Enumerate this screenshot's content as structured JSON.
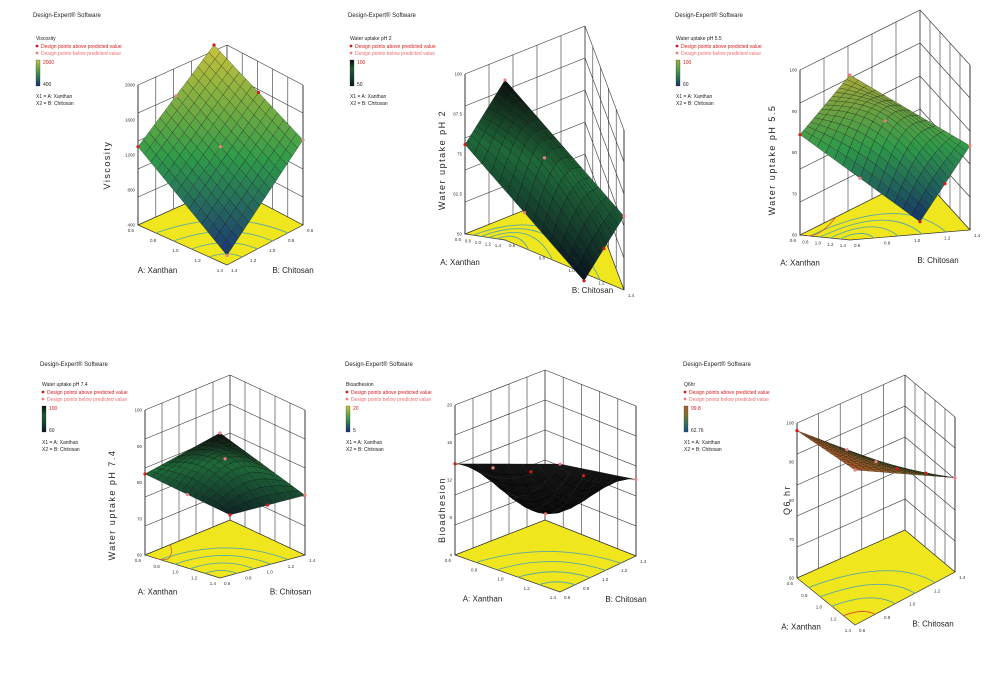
{
  "colors": {
    "floor": "#f0e61e",
    "contour": "#5aa9a0",
    "contour_hot": "#d8442a",
    "surface_low": "#1a2a7a",
    "surface_mid": "#2f9a4a",
    "surface_high": "#c8c23a",
    "surface_hot": "#b55a2a",
    "dark_surface": "#0b0b0b",
    "design_point_above": "#d31b1b",
    "design_point_below": "#ee8080"
  },
  "chart_data": [
    {
      "type": "surface3d",
      "software_label": "Design-Expert® Software",
      "response": "Viscosity",
      "legend": {
        "above": "Design points above predicted value",
        "below": "Design points below predicted value",
        "scale_top": "2000",
        "scale_bottom": "400",
        "x1": "X1 = A: Xanthan",
        "x2": "X2 = B: Chitosan"
      },
      "zlabel": "Viscosity",
      "xlabel": "B: Chitosan",
      "ylabel": "A: Xanthan",
      "z_ticks": [
        "2000",
        "1600",
        "1200",
        "800",
        "400"
      ],
      "x_ticks": [
        "1.4",
        "1.2",
        "1.0",
        "0.8",
        "0.6"
      ],
      "y_ticks": [
        "0.6",
        "0.8",
        "1.0",
        "1.2",
        "1.4"
      ],
      "surface_colormap": "blue-green-yellow",
      "surface_shape": "plane",
      "corners_z": [
        0.05,
        0.55,
        0.6,
        1.0
      ]
    },
    {
      "type": "surface3d",
      "software_label": "Design-Expert® Software",
      "response": "Water uptake pH 2",
      "legend": {
        "above": "Design points above predicted value",
        "below": "Design points below predicted value",
        "scale_top": "100",
        "scale_bottom": "50",
        "x1": "X1 = A: Xanthan",
        "x2": "X2 = B: Chitosan"
      },
      "zlabel": "Water uptake pH 2",
      "xlabel": "B: Chitosan",
      "ylabel": "A: Xanthan",
      "z_ticks": [
        "100",
        "87.5",
        "75",
        "62.5",
        "50"
      ],
      "x_ticks": [
        "0.6",
        "0.8",
        "1.0",
        "1.2",
        "1.4"
      ],
      "y_ticks": [
        "0.6",
        "0.8",
        "1.0",
        "1.2",
        "1.4"
      ],
      "surface_colormap": "dark-green",
      "surface_shape": "saddle",
      "corners_z": [
        1.0,
        0.55,
        0.45,
        0.0
      ]
    },
    {
      "type": "surface3d",
      "software_label": "Design-Expert® Software",
      "response": "Water uptake pH 5.5",
      "legend": {
        "above": "Design points above predicted value",
        "below": "Design points below predicted value",
        "scale_top": "100",
        "scale_bottom": "60",
        "x1": "X1 = A: Xanthan",
        "x2": "X2 = B: Chitosan"
      },
      "zlabel": "Water uptake pH 5.5",
      "xlabel": "B: Chitosan",
      "ylabel": "A: Xanthan",
      "z_ticks": [
        "100",
        "90",
        "80",
        "70",
        "60"
      ],
      "x_ticks": [
        "0.6",
        "0.8",
        "1.0",
        "1.2",
        "1.4"
      ],
      "y_ticks": [
        "0.6",
        "0.8",
        "1.0",
        "1.2",
        "1.4"
      ],
      "surface_colormap": "dark-green-yellow",
      "surface_shape": "saddle",
      "corners_z": [
        1.0,
        0.6,
        0.5,
        0.0
      ]
    },
    {
      "type": "surface3d",
      "software_label": "Design-Expert® Software",
      "response": "Water uptake pH 7.4",
      "legend": {
        "above": "Design points above predicted value",
        "below": "Design points below predicted value",
        "scale_top": "100",
        "scale_bottom": "60",
        "x1": "X1 = A: Xanthan",
        "x2": "X2 = B: Chitosan"
      },
      "zlabel": "Water uptake pH 7.4",
      "xlabel": "B: Chitosan",
      "ylabel": "A: Xanthan",
      "z_ticks": [
        "100",
        "90",
        "80",
        "70",
        "60"
      ],
      "x_ticks": [
        "0.6",
        "0.8",
        "1.0",
        "1.2",
        "1.4"
      ],
      "y_ticks": [
        "0.6",
        "0.8",
        "1.0",
        "1.2",
        "1.4"
      ],
      "surface_colormap": "dark-green",
      "surface_shape": "saddle",
      "corners_z": [
        1.0,
        0.55,
        0.4,
        0.1
      ]
    },
    {
      "type": "surface3d",
      "software_label": "Design-Expert® Software",
      "response": "Bioadhesion",
      "legend": {
        "above": "Design points above predicted value",
        "below": "Design points below predicted value",
        "scale_top": "20",
        "scale_bottom": "5",
        "x1": "X1 = A: Xanthan",
        "x2": "X2 = B: Chitosan"
      },
      "zlabel": "Bioadhesion",
      "xlabel": "B: Chitosan",
      "ylabel": "A: Xanthan",
      "z_ticks": [
        "20",
        "16",
        "12",
        "8",
        "4"
      ],
      "x_ticks": [
        "0.6",
        "0.8",
        "1.0",
        "1.2",
        "1.4"
      ],
      "y_ticks": [
        "0.6",
        "0.8",
        "1.0",
        "1.2",
        "1.4"
      ],
      "surface_colormap": "black",
      "surface_shape": "bowl",
      "corners_z": [
        0.85,
        0.6,
        0.5,
        0.3
      ]
    },
    {
      "type": "surface3d",
      "software_label": "Design-Expert® Software",
      "response": "Q6hr",
      "legend": {
        "above": "Design points above predicted value",
        "below": "Design points below predicted value",
        "scale_top": "99.8",
        "scale_bottom": "62.76",
        "x1": "X1 = A: Xanthan",
        "x2": "X2 = B: Chitosan"
      },
      "zlabel": "Q6 hr",
      "xlabel": "B: Chitosan",
      "ylabel": "A: Xanthan",
      "z_ticks": [
        "100",
        "90",
        "80",
        "70",
        "60"
      ],
      "x_ticks": [
        "0.6",
        "0.8",
        "1.0",
        "1.2",
        "1.4"
      ],
      "y_ticks": [
        "0.6",
        "0.8",
        "1.0",
        "1.2",
        "1.4"
      ],
      "surface_colormap": "dark-green-orange",
      "surface_shape": "slope",
      "corners_z": [
        1.0,
        0.95,
        0.6,
        0.35
      ]
    }
  ]
}
